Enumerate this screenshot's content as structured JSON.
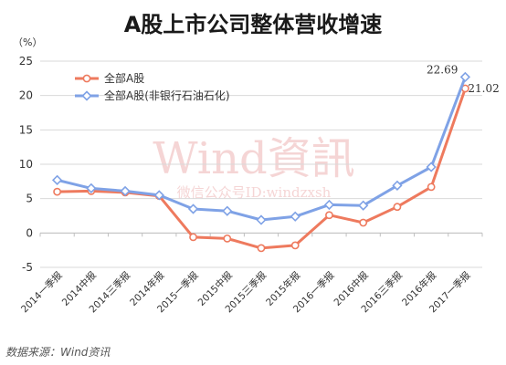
{
  "title": "A股上市公司整体营收增速",
  "source": "数据来源：Wind资讯",
  "watermark": {
    "main": "Wind資訊",
    "sub": "微信公众号ID:windzxsh"
  },
  "chart_data": {
    "type": "line",
    "title": "A股上市公司整体营收增速",
    "unit_label": "（%）",
    "xlabel": "",
    "ylabel": "",
    "ylim": [
      -5,
      25
    ],
    "yticks": [
      -5,
      0,
      5,
      10,
      15,
      20,
      25
    ],
    "grid": true,
    "legend_position": "top-left",
    "categories": [
      "2014一季报",
      "2014中报",
      "2014三季报",
      "2014年报",
      "2015一季报",
      "2015中报",
      "2015三季报",
      "2015年报",
      "2016一季报",
      "2016中报",
      "2016三季报",
      "2016年报",
      "2017一季报"
    ],
    "series": [
      {
        "name": "全部A股",
        "color": "#ee7a5e",
        "marker": "circle",
        "values": [
          6.0,
          6.1,
          5.9,
          5.4,
          -0.6,
          -0.8,
          -2.2,
          -1.8,
          2.6,
          1.5,
          3.8,
          6.7,
          21.02
        ]
      },
      {
        "name": "全部A股(非银行石油石化)",
        "color": "#7fa2e6",
        "marker": "diamond",
        "values": [
          7.7,
          6.5,
          6.1,
          5.5,
          3.5,
          3.2,
          1.9,
          2.4,
          4.1,
          4.0,
          6.9,
          9.6,
          22.69
        ]
      }
    ],
    "annotations": [
      {
        "text": "22.69",
        "series": 1,
        "index": 12
      },
      {
        "text": "21.02",
        "series": 0,
        "index": 12
      }
    ]
  }
}
